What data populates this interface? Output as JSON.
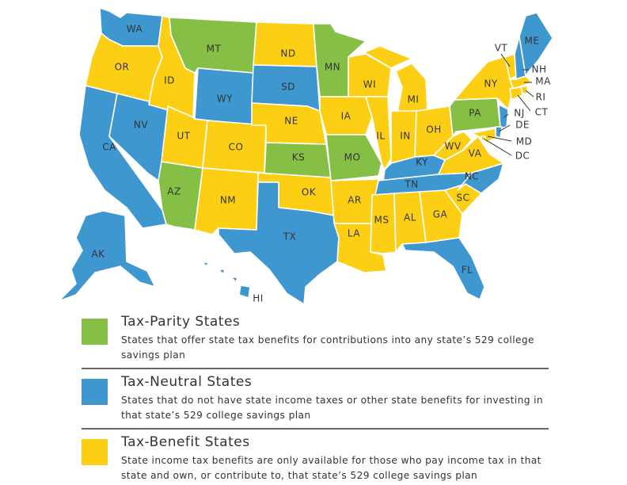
{
  "colors": {
    "tax_parity": "#86bf45",
    "tax_neutral": "#3f97d0",
    "tax_benefit": "#fccf14"
  },
  "states": [
    {
      "abbr": "WA",
      "category": "tax_neutral"
    },
    {
      "abbr": "OR",
      "category": "tax_benefit"
    },
    {
      "abbr": "CA",
      "category": "tax_neutral"
    },
    {
      "abbr": "NV",
      "category": "tax_neutral"
    },
    {
      "abbr": "ID",
      "category": "tax_benefit"
    },
    {
      "abbr": "MT",
      "category": "tax_parity"
    },
    {
      "abbr": "WY",
      "category": "tax_neutral"
    },
    {
      "abbr": "UT",
      "category": "tax_benefit"
    },
    {
      "abbr": "AZ",
      "category": "tax_parity"
    },
    {
      "abbr": "CO",
      "category": "tax_benefit"
    },
    {
      "abbr": "NM",
      "category": "tax_benefit"
    },
    {
      "abbr": "ND",
      "category": "tax_benefit"
    },
    {
      "abbr": "SD",
      "category": "tax_neutral"
    },
    {
      "abbr": "NE",
      "category": "tax_benefit"
    },
    {
      "abbr": "KS",
      "category": "tax_parity"
    },
    {
      "abbr": "OK",
      "category": "tax_benefit"
    },
    {
      "abbr": "TX",
      "category": "tax_neutral"
    },
    {
      "abbr": "MN",
      "category": "tax_parity"
    },
    {
      "abbr": "IA",
      "category": "tax_benefit"
    },
    {
      "abbr": "MO",
      "category": "tax_parity"
    },
    {
      "abbr": "AR",
      "category": "tax_benefit"
    },
    {
      "abbr": "LA",
      "category": "tax_benefit"
    },
    {
      "abbr": "WI",
      "category": "tax_benefit"
    },
    {
      "abbr": "IL",
      "category": "tax_benefit"
    },
    {
      "abbr": "MI",
      "category": "tax_benefit"
    },
    {
      "abbr": "IN",
      "category": "tax_benefit"
    },
    {
      "abbr": "OH",
      "category": "tax_benefit"
    },
    {
      "abbr": "KY",
      "category": "tax_neutral"
    },
    {
      "abbr": "TN",
      "category": "tax_neutral"
    },
    {
      "abbr": "MS",
      "category": "tax_benefit"
    },
    {
      "abbr": "AL",
      "category": "tax_benefit"
    },
    {
      "abbr": "GA",
      "category": "tax_benefit"
    },
    {
      "abbr": "FL",
      "category": "tax_neutral"
    },
    {
      "abbr": "SC",
      "category": "tax_benefit"
    },
    {
      "abbr": "NC",
      "category": "tax_neutral"
    },
    {
      "abbr": "VA",
      "category": "tax_benefit"
    },
    {
      "abbr": "WV",
      "category": "tax_benefit"
    },
    {
      "abbr": "PA",
      "category": "tax_parity"
    },
    {
      "abbr": "NY",
      "category": "tax_benefit"
    },
    {
      "abbr": "VT",
      "category": "tax_benefit"
    },
    {
      "abbr": "NH",
      "category": "tax_neutral"
    },
    {
      "abbr": "ME",
      "category": "tax_neutral"
    },
    {
      "abbr": "MA",
      "category": "tax_benefit"
    },
    {
      "abbr": "RI",
      "category": "tax_benefit"
    },
    {
      "abbr": "CT",
      "category": "tax_benefit"
    },
    {
      "abbr": "NJ",
      "category": "tax_neutral"
    },
    {
      "abbr": "DE",
      "category": "tax_neutral"
    },
    {
      "abbr": "MD",
      "category": "tax_benefit"
    },
    {
      "abbr": "DC",
      "category": "tax_benefit"
    },
    {
      "abbr": "AK",
      "category": "tax_neutral"
    },
    {
      "abbr": "HI",
      "category": "tax_neutral"
    }
  ],
  "legend": [
    {
      "category": "tax_parity",
      "title": "Tax-Parity States",
      "description": "States that offer state tax benefits for contributions into any state’s 529 college savings plan"
    },
    {
      "category": "tax_neutral",
      "title": "Tax-Neutral States",
      "description": "States that do not have state income taxes or other state benefits for investing in that state’s 529 college savings plan"
    },
    {
      "category": "tax_benefit",
      "title": "Tax-Benefit States",
      "description": "State income tax benefits are only available for those who pay income tax in that state and own, or contribute to, that state’s 529 college savings plan"
    }
  ]
}
